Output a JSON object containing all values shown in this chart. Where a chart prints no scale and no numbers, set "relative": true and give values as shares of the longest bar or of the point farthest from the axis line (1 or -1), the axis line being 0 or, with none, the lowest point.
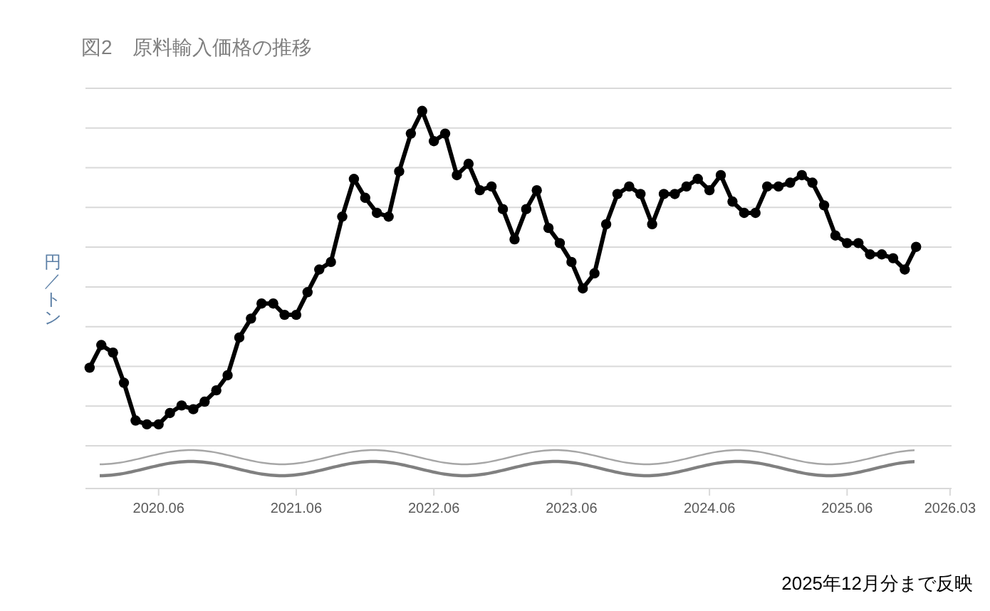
{
  "chart_data": {
    "type": "line",
    "title": "図2　原料輸入価格の推移",
    "ylabel": "円／トン",
    "annotations": [
      "2025年12月分まで反映"
    ],
    "relative": true,
    "grid": "y",
    "marker": "circle",
    "line_style": "solid",
    "x": [
      "2019-12",
      "2020-01",
      "2020-02",
      "2020-03",
      "2020-04",
      "2020-05",
      "2020-06",
      "2020-07",
      "2020-08",
      "2020-09",
      "2020-10",
      "2020-11",
      "2020-12",
      "2021-01",
      "2021-02",
      "2021-03",
      "2021-04",
      "2021-05",
      "2021-06",
      "2021-07",
      "2021-08",
      "2021-09",
      "2021-10",
      "2021-11",
      "2021-12",
      "2022-01",
      "2022-02",
      "2022-03",
      "2022-04",
      "2022-05",
      "2022-06",
      "2022-07",
      "2022-08",
      "2022-09",
      "2022-10",
      "2022-11",
      "2022-12",
      "2023-01",
      "2023-02",
      "2023-03",
      "2023-04",
      "2023-05",
      "2023-06",
      "2023-07",
      "2023-08",
      "2023-09",
      "2023-10",
      "2023-11",
      "2023-12",
      "2024-01",
      "2024-02",
      "2024-03",
      "2024-04",
      "2024-05",
      "2024-06",
      "2024-07",
      "2024-08",
      "2024-09",
      "2024-10",
      "2024-11",
      "2024-12",
      "2025-01",
      "2025-02",
      "2025-03",
      "2025-04",
      "2025-05",
      "2025-06",
      "2025-07",
      "2025-08",
      "2025-09",
      "2025-10",
      "2025-11",
      "2025-12"
    ],
    "xlim": [
      "2019-11-20",
      "2026-03-05"
    ],
    "xticks": [
      {
        "value": "2020-06",
        "label": "2020.06"
      },
      {
        "value": "2021-06",
        "label": "2021.06"
      },
      {
        "value": "2022-06",
        "label": "2022.06"
      },
      {
        "value": "2023-06",
        "label": "2023.06"
      },
      {
        "value": "2024-06",
        "label": "2024.06"
      },
      {
        "value": "2025-06",
        "label": "2025.06"
      },
      {
        "value": "2026-03",
        "label": "2026.03"
      }
    ],
    "series": [
      {
        "color": "#000000",
        "values": [
          0.32,
          0.38,
          0.36,
          0.28,
          0.18,
          0.17,
          0.17,
          0.2,
          0.22,
          0.21,
          0.23,
          0.26,
          0.3,
          0.4,
          0.45,
          0.49,
          0.49,
          0.46,
          0.46,
          0.52,
          0.58,
          0.6,
          0.72,
          0.82,
          0.77,
          0.73,
          0.72,
          0.84,
          0.94,
          1,
          0.92,
          0.94,
          0.83,
          0.86,
          0.79,
          0.8,
          0.74,
          0.66,
          0.74,
          0.79,
          0.69,
          0.65,
          0.6,
          0.53,
          0.57,
          0.7,
          0.78,
          0.8,
          0.78,
          0.7,
          0.78,
          0.78,
          0.8,
          0.82,
          0.79,
          0.83,
          0.76,
          0.73,
          0.73,
          0.8,
          0.8,
          0.81,
          0.83,
          0.81,
          0.75,
          0.67,
          0.65,
          0.65,
          0.62,
          0.62,
          0.61,
          0.58,
          0.64
        ]
      }
    ]
  }
}
